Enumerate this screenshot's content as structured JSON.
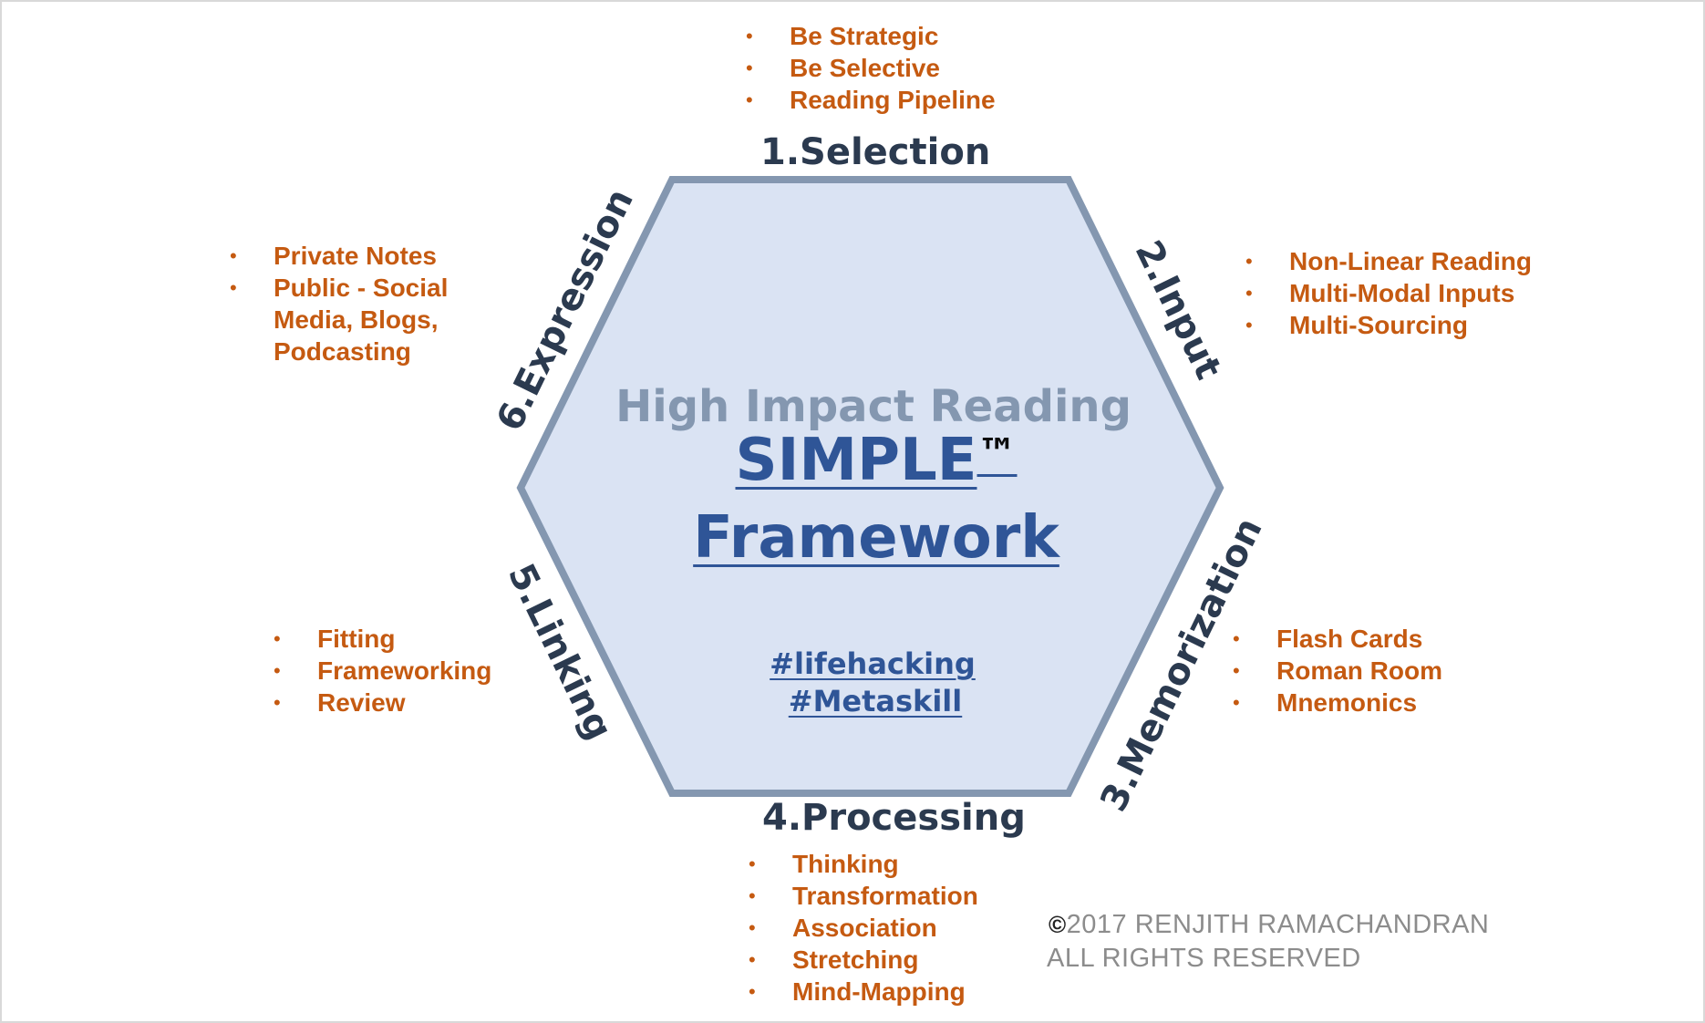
{
  "colors": {
    "hexagon_fill": "#dae3f3",
    "hexagon_stroke": "#8497b0",
    "bullet_text": "#c55a11",
    "step_label": "#2b3a4f",
    "title": "#2f5597",
    "subtitle": "#8497b0",
    "copyright": "#8c8c8c"
  },
  "center": {
    "subtitle": "High Impact Reading",
    "title_line1": "SIMPLE",
    "trademark": "™",
    "title_line2": "Framework",
    "tag1": "#lifehacking ",
    "tag2": "#Metaskill"
  },
  "steps": {
    "selection": {
      "label": "1.Selection",
      "items": [
        "Be Strategic",
        "Be Selective",
        "Reading Pipeline"
      ]
    },
    "input": {
      "label": "2.Input",
      "items": [
        "Non-Linear Reading",
        "Multi-Modal Inputs",
        "Multi-Sourcing"
      ]
    },
    "memorization": {
      "label": "3.Memorization",
      "items": [
        "Flash Cards",
        "Roman Room",
        "Mnemonics"
      ]
    },
    "processing": {
      "label": "4.Processing",
      "items": [
        "Thinking",
        "Transformation",
        "Association",
        "Stretching",
        "Mind-Mapping"
      ]
    },
    "linking": {
      "label": "5.Linking",
      "items": [
        "Fitting",
        "Frameworking",
        "Review"
      ]
    },
    "expression": {
      "label": "6.Expression",
      "items": [
        "Private Notes",
        "Public - Social",
        "Media, Blogs,",
        "Podcasting"
      ]
    }
  },
  "copyright": {
    "symbol": "©",
    "line1": "2017 RENJITH RAMACHANDRAN",
    "line2": "ALL RIGHTS RESERVED"
  }
}
